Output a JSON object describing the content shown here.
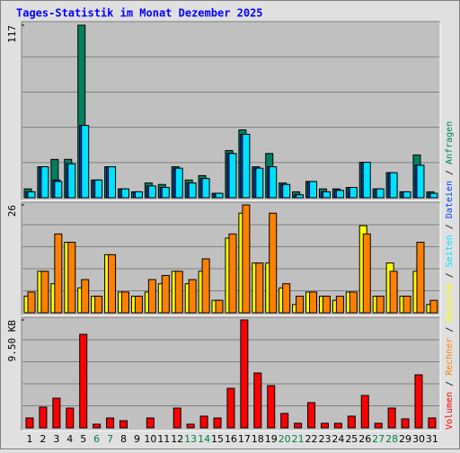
{
  "legend_separator": " / ",
  "chart_data": [
    {
      "type": "bar",
      "title": "Tages-Statistik im Monat Dezember 2025",
      "ylim": [
        0,
        117
      ],
      "yticks": [
        117
      ],
      "series": [
        {
          "name": "Anfragen",
          "color": "#00805c",
          "values": [
            6,
            21,
            26,
            26,
            117,
            12,
            21,
            6,
            4,
            10,
            9,
            21,
            12,
            15,
            3,
            32,
            46,
            21,
            30,
            10,
            4,
            11,
            6,
            6,
            7,
            24,
            6,
            17,
            4,
            29,
            4
          ]
        },
        {
          "name": "Dateien",
          "color": "#0040ff",
          "values": [
            4,
            21,
            12,
            23,
            49,
            12,
            21,
            6,
            4,
            8,
            7,
            20,
            10,
            13,
            3,
            30,
            43,
            20,
            21,
            9,
            2,
            11,
            4,
            5,
            7,
            24,
            6,
            17,
            4,
            22,
            3
          ]
        },
        {
          "name": "Seiten",
          "color": "#00e0ff",
          "values": [
            4,
            21,
            11,
            23,
            49,
            12,
            21,
            6,
            4,
            8,
            7,
            20,
            10,
            13,
            3,
            30,
            43,
            20,
            21,
            9,
            2,
            11,
            4,
            5,
            7,
            24,
            6,
            17,
            4,
            22,
            3
          ]
        }
      ]
    },
    {
      "type": "bar",
      "ylim": [
        0,
        26
      ],
      "yticks": [
        26
      ],
      "series": [
        {
          "name": "Besuche",
          "color": "#ffff00",
          "values": [
            4,
            10,
            7,
            17,
            6,
            4,
            14,
            5,
            4,
            5,
            7,
            10,
            7,
            10,
            3,
            18,
            24,
            12,
            12,
            6,
            2,
            5,
            4,
            3,
            5,
            21,
            4,
            12,
            4,
            10,
            2
          ]
        },
        {
          "name": "Rechner",
          "color": "#ff8000",
          "values": [
            5,
            10,
            19,
            17,
            8,
            4,
            14,
            5,
            4,
            8,
            9,
            10,
            8,
            13,
            3,
            19,
            26,
            12,
            24,
            7,
            4,
            5,
            4,
            4,
            5,
            19,
            4,
            10,
            4,
            17,
            3
          ]
        }
      ]
    },
    {
      "type": "bar",
      "ylim": [
        0,
        9.5
      ],
      "yticks": [
        {
          "value": 9.5,
          "label": "9.50 KB"
        }
      ],
      "categories": [
        "1",
        "2",
        "3",
        "4",
        "5",
        "6",
        "7",
        "8",
        "9",
        "10",
        "11",
        "12",
        "13",
        "14",
        "15",
        "16",
        "17",
        "18",
        "19",
        "20",
        "21",
        "22",
        "23",
        "24",
        "25",
        "26",
        "27",
        "28",
        "29",
        "30",
        "31"
      ],
      "category_colors": [
        "#000000",
        "#000000",
        "#000000",
        "#000000",
        "#000000",
        "#008040",
        "#008040",
        "#000000",
        "#000000",
        "#000000",
        "#000000",
        "#000000",
        "#008040",
        "#008040",
        "#000000",
        "#000000",
        "#000000",
        "#000000",
        "#000000",
        "#008040",
        "#008040",
        "#000000",
        "#000000",
        "#000000",
        "#000000",
        "#000000",
        "#008040",
        "#008040",
        "#000000",
        "#000000",
        "#000000"
      ],
      "series": [
        {
          "name": "Volumen",
          "color": "#ff0000",
          "values": [
            0.87,
            1.82,
            2.61,
            1.74,
            8.24,
            0.32,
            0.87,
            0.63,
            0,
            0.87,
            0,
            1.74,
            0.32,
            1.03,
            0.87,
            3.48,
            9.5,
            4.83,
            3.72,
            1.27,
            0.4,
            2.22,
            0.4,
            0.4,
            1.03,
            2.85,
            0.4,
            1.74,
            0.79,
            4.67,
            0.87
          ]
        }
      ]
    }
  ]
}
